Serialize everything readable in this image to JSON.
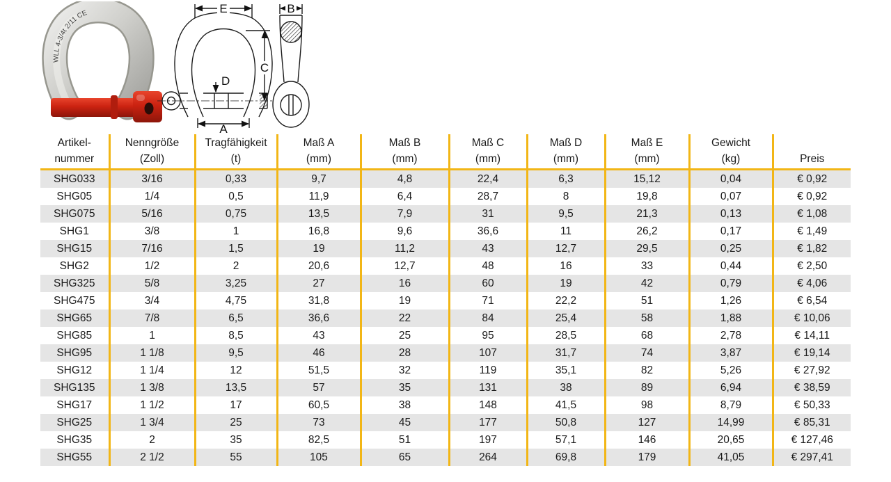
{
  "colors": {
    "accent": "#F2B616",
    "row_alt": "#E5E5E5",
    "text": "#1A1A1A"
  },
  "photo": {
    "marking": "WLL 4-3/4t 2/11  CE"
  },
  "diagram": {
    "labels": {
      "e": "E",
      "b": "B",
      "c": "C",
      "d": "D",
      "a": "A"
    }
  },
  "table": {
    "columns": [
      {
        "line1": "Artikel-",
        "line2": "nummer"
      },
      {
        "line1": "Nenngröße",
        "line2": "(Zoll)"
      },
      {
        "line1": "Tragfähigkeit",
        "line2": "(t)"
      },
      {
        "line1": "Maß A",
        "line2": "(mm)"
      },
      {
        "line1": "Maß B",
        "line2": "(mm)"
      },
      {
        "line1": "Maß C",
        "line2": "(mm)"
      },
      {
        "line1": "Maß D",
        "line2": "(mm)"
      },
      {
        "line1": "Maß E",
        "line2": "(mm)"
      },
      {
        "line1": "Gewicht",
        "line2": "(kg)"
      },
      {
        "line1": "",
        "line2": "Preis"
      }
    ],
    "rows": [
      [
        "SHG033",
        "3/16",
        "0,33",
        "9,7",
        "4,8",
        "22,4",
        "6,3",
        "15,12",
        "0,04",
        "€ 0,92"
      ],
      [
        "SHG05",
        "1/4",
        "0,5",
        "11,9",
        "6,4",
        "28,7",
        "8",
        "19,8",
        "0,07",
        "€ 0,92"
      ],
      [
        "SHG075",
        "5/16",
        "0,75",
        "13,5",
        "7,9",
        "31",
        "9,5",
        "21,3",
        "0,13",
        "€ 1,08"
      ],
      [
        "SHG1",
        "3/8",
        "1",
        "16,8",
        "9,6",
        "36,6",
        "11",
        "26,2",
        "0,17",
        "€ 1,49"
      ],
      [
        "SHG15",
        "7/16",
        "1,5",
        "19",
        "11,2",
        "43",
        "12,7",
        "29,5",
        "0,25",
        "€ 1,82"
      ],
      [
        "SHG2",
        "1/2",
        "2",
        "20,6",
        "12,7",
        "48",
        "16",
        "33",
        "0,44",
        "€ 2,50"
      ],
      [
        "SHG325",
        "5/8",
        "3,25",
        "27",
        "16",
        "60",
        "19",
        "42",
        "0,79",
        "€ 4,06"
      ],
      [
        "SHG475",
        "3/4",
        "4,75",
        "31,8",
        "19",
        "71",
        "22,2",
        "51",
        "1,26",
        "€ 6,54"
      ],
      [
        "SHG65",
        "7/8",
        "6,5",
        "36,6",
        "22",
        "84",
        "25,4",
        "58",
        "1,88",
        "€ 10,06"
      ],
      [
        "SHG85",
        "1",
        "8,5",
        "43",
        "25",
        "95",
        "28,5",
        "68",
        "2,78",
        "€ 14,11"
      ],
      [
        "SHG95",
        "1 1/8",
        "9,5",
        "46",
        "28",
        "107",
        "31,7",
        "74",
        "3,87",
        "€ 19,14"
      ],
      [
        "SHG12",
        "1 1/4",
        "12",
        "51,5",
        "32",
        "119",
        "35,1",
        "82",
        "5,26",
        "€ 27,92"
      ],
      [
        "SHG135",
        "1 3/8",
        "13,5",
        "57",
        "35",
        "131",
        "38",
        "89",
        "6,94",
        "€ 38,59"
      ],
      [
        "SHG17",
        "1 1/2",
        "17",
        "60,5",
        "38",
        "148",
        "41,5",
        "98",
        "8,79",
        "€ 50,33"
      ],
      [
        "SHG25",
        "1 3/4",
        "25",
        "73",
        "45",
        "177",
        "50,8",
        "127",
        "14,99",
        "€ 85,31"
      ],
      [
        "SHG35",
        "2",
        "35",
        "82,5",
        "51",
        "197",
        "57,1",
        "146",
        "20,65",
        "€ 127,46"
      ],
      [
        "SHG55",
        "2 1/2",
        "55",
        "105",
        "65",
        "264",
        "69,8",
        "179",
        "41,05",
        "€ 297,41"
      ]
    ]
  }
}
